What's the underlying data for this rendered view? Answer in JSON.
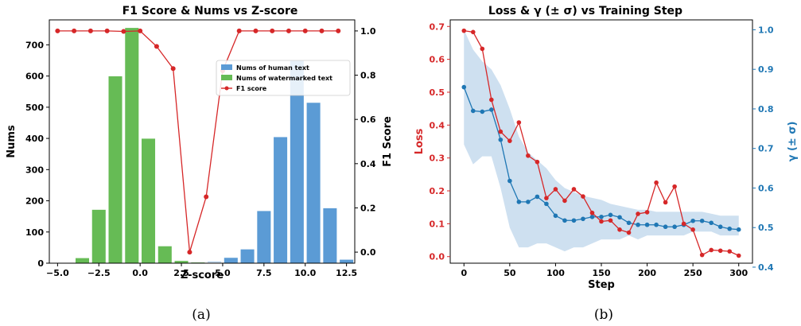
{
  "captions": [
    "(a)",
    "(b)"
  ],
  "chart_data": [
    {
      "type": "bar",
      "title": "F1 Score & Nums vs Z-score",
      "xlabel": "Z-score",
      "ylabel": "Nums",
      "y2label": "F1 Score",
      "xlim": [
        -5.5,
        13.0
      ],
      "ylim": [
        0,
        780
      ],
      "y2lim": [
        -0.05,
        1.05
      ],
      "x_ticks": [
        "−5.0",
        "−2.5",
        "0.0",
        "2.5",
        "5.0",
        "7.5",
        "10.0",
        "12.5"
      ],
      "x_tick_values": [
        -5.0,
        -2.5,
        0.0,
        2.5,
        5.0,
        7.5,
        10.0,
        12.5
      ],
      "y_ticks": [
        "0",
        "100",
        "200",
        "300",
        "400",
        "500",
        "600",
        "700"
      ],
      "y_tick_values": [
        0,
        100,
        200,
        300,
        400,
        500,
        600,
        700
      ],
      "y2_ticks": [
        "0.0",
        "0.2",
        "0.4",
        "0.6",
        "0.8",
        "1.0"
      ],
      "y2_tick_values": [
        0.0,
        0.2,
        0.4,
        0.6,
        0.8,
        1.0
      ],
      "bar_width": 0.85,
      "series": [
        {
          "name": "Nums of human text",
          "color": "#5b9bd5",
          "x": [
            1.5,
            2.5,
            3.5,
            4.5,
            5.5,
            6.5,
            7.5,
            8.5,
            9.5,
            10.5,
            11.5,
            12.5
          ],
          "values": [
            1,
            2,
            3,
            5,
            18,
            45,
            168,
            405,
            650,
            515,
            177,
            12
          ]
        },
        {
          "name": "Nums of watermarked text",
          "color": "#66bb55",
          "x": [
            -3.5,
            -2.5,
            -1.5,
            -0.5,
            0.5,
            1.5,
            2.5,
            3.5,
            4.5
          ],
          "values": [
            17,
            172,
            600,
            755,
            400,
            55,
            8,
            3,
            2
          ]
        }
      ],
      "line": {
        "name": "F1 score",
        "color": "#d62728",
        "axis": "right",
        "x": [
          -5.0,
          -4.0,
          -3.0,
          -2.0,
          -1.0,
          0.0,
          1.0,
          2.0,
          3.0,
          4.0,
          5.0,
          6.0,
          7.0,
          8.0,
          9.0,
          10.0,
          11.0,
          12.0
        ],
        "values": [
          1.0,
          1.0,
          1.0,
          1.0,
          0.998,
          1.0,
          0.93,
          0.83,
          0.0,
          0.25,
          0.82,
          1.0,
          1.0,
          1.0,
          1.0,
          1.0,
          1.0,
          1.0
        ]
      },
      "legend_position": "upper right"
    },
    {
      "type": "line",
      "title": "Loss & γ (± σ) vs Training Step",
      "xlabel": "Step",
      "ylabel": "Loss",
      "y2label": "γ (± σ)",
      "xlim": [
        -15,
        315
      ],
      "ylim": [
        -0.02,
        0.72
      ],
      "y2lim": [
        0.41,
        1.025
      ],
      "x_ticks": [
        "0",
        "50",
        "100",
        "150",
        "200",
        "250",
        "300"
      ],
      "x_tick_values": [
        0,
        50,
        100,
        150,
        200,
        250,
        300
      ],
      "y_ticks": [
        "0.0",
        "0.1",
        "0.2",
        "0.3",
        "0.4",
        "0.5",
        "0.6",
        "0.7"
      ],
      "y_tick_values": [
        0.0,
        0.1,
        0.2,
        0.3,
        0.4,
        0.5,
        0.6,
        0.7
      ],
      "y2_ticks": [
        "0.4",
        "0.5",
        "0.6",
        "0.7",
        "0.8",
        "0.9",
        "1.0"
      ],
      "y2_tick_values": [
        0.4,
        0.5,
        0.6,
        0.7,
        0.8,
        0.9,
        1.0
      ],
      "x": [
        0,
        10,
        20,
        30,
        40,
        50,
        60,
        70,
        80,
        90,
        100,
        110,
        120,
        130,
        140,
        150,
        160,
        170,
        180,
        190,
        200,
        210,
        220,
        230,
        240,
        250,
        260,
        270,
        280,
        290,
        300
      ],
      "series": [
        {
          "name": "Loss",
          "color": "#d62728",
          "axis": "left",
          "values": [
            0.687,
            0.683,
            0.632,
            0.477,
            0.38,
            0.352,
            0.408,
            0.307,
            0.288,
            0.178,
            0.205,
            0.17,
            0.205,
            0.183,
            0.133,
            0.107,
            0.11,
            0.082,
            0.073,
            0.13,
            0.135,
            0.225,
            0.165,
            0.213,
            0.1,
            0.082,
            0.005,
            0.02,
            0.018,
            0.016,
            0.003
          ]
        },
        {
          "name": "γ",
          "color": "#1f77b4",
          "axis": "right",
          "values": [
            0.855,
            0.795,
            0.793,
            0.798,
            0.722,
            0.618,
            0.565,
            0.565,
            0.578,
            0.56,
            0.53,
            0.518,
            0.518,
            0.522,
            0.527,
            0.527,
            0.532,
            0.526,
            0.512,
            0.507,
            0.507,
            0.507,
            0.502,
            0.502,
            0.507,
            0.517,
            0.517,
            0.512,
            0.502,
            0.497,
            0.495
          ],
          "band_upper": [
            1.0,
            0.95,
            0.92,
            0.9,
            0.86,
            0.8,
            0.73,
            0.69,
            0.67,
            0.65,
            0.62,
            0.6,
            0.59,
            0.58,
            0.575,
            0.57,
            0.56,
            0.555,
            0.55,
            0.545,
            0.545,
            0.54,
            0.54,
            0.54,
            0.54,
            0.54,
            0.54,
            0.535,
            0.53,
            0.53,
            0.53
          ],
          "band_lower": [
            0.71,
            0.66,
            0.68,
            0.68,
            0.6,
            0.5,
            0.45,
            0.45,
            0.46,
            0.46,
            0.45,
            0.44,
            0.45,
            0.45,
            0.46,
            0.47,
            0.47,
            0.47,
            0.48,
            0.47,
            0.48,
            0.48,
            0.48,
            0.48,
            0.48,
            0.49,
            0.49,
            0.49,
            0.48,
            0.48,
            0.48
          ]
        }
      ],
      "band_color": "#c6dbed"
    }
  ]
}
